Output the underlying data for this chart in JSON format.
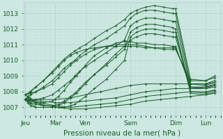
{
  "title": "Pression niveau de la mer( hPa )",
  "ylabel_ticks": [
    1007,
    1008,
    1009,
    1010,
    1011,
    1012,
    1013
  ],
  "ylim": [
    1006.5,
    1013.7
  ],
  "xlabels": [
    "Jeu",
    "Mar",
    "Ven",
    "Sam",
    "Dim",
    "Lun"
  ],
  "bg_color": "#cce8e0",
  "grid_major_color": "#aacfc8",
  "grid_minor_color": "#bcddd7",
  "line_color": "#1a5c2a",
  "tick_label_fontsize": 6.5,
  "title_fontsize": 7.5,
  "figsize": [
    3.2,
    2.0
  ],
  "dpi": 100,
  "day_tick_x": [
    0,
    1,
    2,
    3.5,
    5,
    6
  ],
  "xlim": [
    -0.05,
    6.5
  ],
  "ensemble_series": [
    {
      "x": [
        0,
        0.08,
        0.18,
        0.35,
        0.6,
        0.9,
        1.1,
        1.3,
        1.5,
        1.65,
        1.8,
        2.0,
        2.3,
        2.7,
        3.0,
        3.3,
        3.5,
        3.7,
        4.0,
        4.3,
        4.6,
        4.9,
        5.0,
        5.5,
        6.0,
        6.3
      ],
      "y": [
        1007.5,
        1007.7,
        1008.0,
        1008.3,
        1008.7,
        1009.3,
        1009.7,
        1010.1,
        1010.4,
        1010.6,
        1010.8,
        1011.0,
        1011.4,
        1011.9,
        1012.2,
        1012.6,
        1013.0,
        1013.2,
        1013.4,
        1013.5,
        1013.4,
        1013.3,
        1013.3,
        1008.8,
        1008.7,
        1009.0
      ]
    },
    {
      "x": [
        0,
        0.08,
        0.18,
        0.35,
        0.6,
        0.9,
        1.1,
        1.3,
        1.5,
        1.65,
        1.8,
        2.0,
        2.3,
        2.7,
        3.0,
        3.3,
        3.5,
        3.7,
        4.0,
        4.3,
        4.6,
        4.9,
        5.0,
        5.5,
        6.0,
        6.3
      ],
      "y": [
        1007.5,
        1007.6,
        1007.8,
        1008.0,
        1008.3,
        1008.7,
        1009.1,
        1009.5,
        1009.8,
        1010.0,
        1010.3,
        1010.6,
        1011.0,
        1011.4,
        1011.8,
        1012.2,
        1012.7,
        1013.0,
        1013.2,
        1013.2,
        1013.1,
        1013.0,
        1013.0,
        1008.5,
        1008.4,
        1008.6
      ]
    },
    {
      "x": [
        0,
        0.08,
        0.18,
        0.35,
        0.6,
        0.9,
        1.1,
        1.3,
        1.5,
        1.65,
        1.8,
        2.0,
        2.3,
        2.7,
        3.0,
        3.3,
        3.5,
        3.7,
        4.0,
        4.3,
        4.6,
        4.9,
        5.0,
        5.5,
        6.0,
        6.3
      ],
      "y": [
        1007.5,
        1007.5,
        1007.5,
        1007.5,
        1007.6,
        1007.8,
        1008.1,
        1008.4,
        1008.7,
        1009.0,
        1009.3,
        1009.6,
        1010.0,
        1010.5,
        1010.9,
        1011.3,
        1012.2,
        1012.5,
        1012.7,
        1012.7,
        1012.6,
        1012.5,
        1012.5,
        1008.3,
        1008.2,
        1008.4
      ]
    },
    {
      "x": [
        0,
        0.08,
        0.18,
        0.35,
        0.6,
        0.9,
        1.1,
        1.3,
        1.5,
        1.65,
        1.8,
        2.0,
        2.3,
        2.7,
        3.0,
        3.3,
        3.5,
        3.7,
        4.0,
        4.3,
        4.6,
        4.9,
        5.0,
        5.5,
        6.0,
        6.3
      ],
      "y": [
        1007.5,
        1007.4,
        1007.3,
        1007.2,
        1007.1,
        1007.1,
        1007.2,
        1007.4,
        1007.7,
        1007.9,
        1008.2,
        1008.6,
        1009.1,
        1009.7,
        1010.2,
        1010.7,
        1011.8,
        1012.1,
        1012.3,
        1012.3,
        1012.2,
        1012.1,
        1012.0,
        1008.0,
        1007.9,
        1008.1
      ]
    },
    {
      "x": [
        0,
        0.08,
        0.18,
        0.35,
        0.6,
        0.9,
        1.1,
        1.3,
        1.5,
        1.65,
        1.8,
        2.0,
        2.3,
        2.7,
        3.0,
        3.3,
        3.5,
        3.7,
        4.0,
        4.3,
        4.6,
        4.9,
        5.0,
        5.5,
        6.0,
        6.3
      ],
      "y": [
        1007.5,
        1007.3,
        1007.1,
        1007.0,
        1007.0,
        1007.0,
        1007.0,
        1007.0,
        1007.1,
        1007.2,
        1007.4,
        1007.7,
        1008.2,
        1008.8,
        1009.4,
        1010.0,
        1011.5,
        1011.8,
        1012.0,
        1012.0,
        1011.9,
        1011.8,
        1011.8,
        1007.9,
        1007.8,
        1008.0
      ]
    },
    {
      "x": [
        0,
        0.15,
        0.35,
        0.6,
        0.9,
        1.1,
        1.3,
        1.5,
        1.7,
        2.0,
        2.3,
        2.7,
        3.0,
        3.3,
        3.5,
        3.7,
        4.0,
        4.3,
        4.6,
        4.9,
        5.0,
        5.5,
        6.0,
        6.3
      ],
      "y": [
        1007.5,
        1007.3,
        1007.0,
        1007.0,
        1007.0,
        1007.1,
        1007.3,
        1007.6,
        1007.9,
        1008.5,
        1009.1,
        1009.8,
        1010.4,
        1010.9,
        1011.3,
        1011.5,
        1011.7,
        1011.7,
        1011.6,
        1011.5,
        1011.5,
        1008.2,
        1008.2,
        1008.3
      ]
    },
    {
      "x": [
        0,
        0.15,
        0.35,
        0.6,
        0.9,
        1.1,
        1.3,
        1.5,
        1.7,
        2.0,
        2.3,
        2.7,
        3.0,
        3.3,
        3.5,
        3.7,
        4.0,
        4.3,
        4.6,
        4.9,
        5.0,
        5.5,
        6.0,
        6.3
      ],
      "y": [
        1007.8,
        1007.6,
        1007.3,
        1007.3,
        1007.4,
        1007.7,
        1008.1,
        1008.6,
        1009.0,
        1009.7,
        1010.3,
        1010.8,
        1011.1,
        1011.2,
        1011.2,
        1011.1,
        1011.1,
        1011.0,
        1011.0,
        1010.9,
        1010.9,
        1008.3,
        1008.3,
        1008.5
      ]
    },
    {
      "x": [
        0,
        0.15,
        0.35,
        0.6,
        0.9,
        1.1,
        1.3,
        1.5,
        1.7,
        2.0,
        2.3,
        2.7,
        3.0,
        3.3,
        3.5,
        3.7,
        4.0,
        4.3,
        4.6,
        4.9,
        5.0,
        5.5,
        6.0,
        6.3
      ],
      "y": [
        1007.8,
        1007.9,
        1008.0,
        1008.2,
        1008.5,
        1008.9,
        1009.3,
        1009.7,
        1010.0,
        1010.4,
        1010.7,
        1010.9,
        1011.0,
        1011.0,
        1011.0,
        1011.0,
        1010.9,
        1010.8,
        1010.8,
        1010.8,
        1010.8,
        1008.5,
        1008.5,
        1008.7
      ]
    },
    {
      "x": [
        0,
        0.15,
        0.35,
        0.6,
        0.9,
        1.1,
        1.3,
        1.5,
        1.7,
        2.0,
        2.3,
        2.7,
        3.0,
        3.3,
        3.5,
        3.7,
        4.0,
        4.3,
        4.6,
        4.9,
        5.0,
        5.5,
        6.0,
        6.3
      ],
      "y": [
        1007.8,
        1008.0,
        1008.3,
        1008.7,
        1009.2,
        1009.6,
        1010.0,
        1010.3,
        1010.5,
        1010.7,
        1010.8,
        1010.9,
        1010.9,
        1010.9,
        1010.9,
        1010.9,
        1010.8,
        1010.8,
        1010.7,
        1010.7,
        1010.7,
        1008.7,
        1008.7,
        1008.9
      ]
    },
    {
      "x": [
        0,
        0.5,
        1.0,
        1.5,
        2.0,
        2.5,
        3.0,
        3.5,
        4.0,
        4.5,
        5.0,
        5.5,
        6.0,
        6.3
      ],
      "y": [
        1007.5,
        1007.5,
        1007.5,
        1007.6,
        1007.8,
        1008.0,
        1008.2,
        1008.4,
        1008.5,
        1008.5,
        1008.5,
        1008.5,
        1008.5,
        1008.6
      ]
    },
    {
      "x": [
        0,
        0.5,
        1.0,
        1.5,
        2.0,
        2.5,
        3.0,
        3.5,
        4.0,
        4.5,
        5.0,
        5.5,
        6.0,
        6.3
      ],
      "y": [
        1007.5,
        1007.4,
        1007.3,
        1007.3,
        1007.4,
        1007.5,
        1007.6,
        1007.8,
        1008.0,
        1008.1,
        1008.2,
        1008.2,
        1008.3,
        1008.4
      ]
    },
    {
      "x": [
        0,
        0.5,
        1.0,
        1.5,
        2.0,
        2.5,
        3.0,
        3.5,
        4.0,
        4.5,
        5.0,
        5.5,
        6.0,
        6.3
      ],
      "y": [
        1007.5,
        1007.3,
        1007.1,
        1007.0,
        1007.1,
        1007.2,
        1007.3,
        1007.5,
        1007.7,
        1007.8,
        1007.9,
        1008.0,
        1008.0,
        1008.1
      ]
    },
    {
      "x": [
        0,
        0.5,
        1.0,
        1.5,
        2.0,
        2.5,
        3.0,
        3.5,
        4.0,
        4.5,
        5.0,
        5.5,
        6.0,
        6.3
      ],
      "y": [
        1007.5,
        1007.2,
        1007.0,
        1006.9,
        1006.9,
        1007.0,
        1007.1,
        1007.2,
        1007.4,
        1007.5,
        1007.6,
        1007.7,
        1007.8,
        1007.9
      ]
    }
  ]
}
